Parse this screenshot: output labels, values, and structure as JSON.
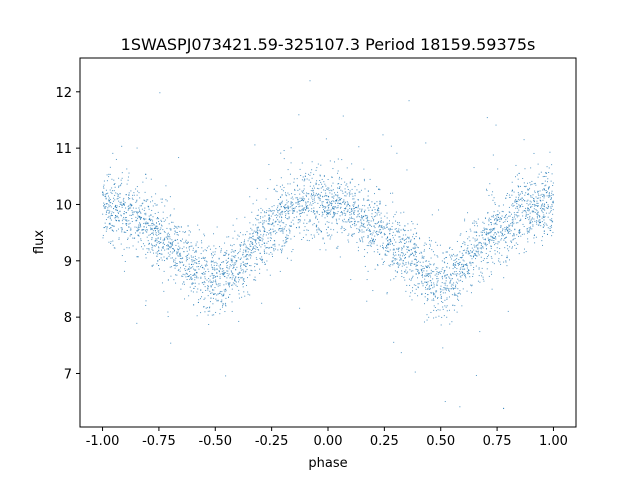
{
  "chart_data": {
    "type": "scatter",
    "title": "1SWASPJ073421.59-325107.3 Period 18159.59375s",
    "xlabel": "phase",
    "ylabel": "flux",
    "xlim": [
      -1.1,
      1.1
    ],
    "ylim": [
      6.05,
      12.6
    ],
    "xticks": [
      "-1.00",
      "-0.75",
      "-0.50",
      "-0.25",
      "0.00",
      "0.25",
      "0.50",
      "0.75",
      "1.00"
    ],
    "yticks": [
      "7",
      "8",
      "9",
      "10",
      "11",
      "12"
    ],
    "grid": false,
    "marker_color": "#1f77b4",
    "series": [
      {
        "phase_profile": {
          "x": [
            -1.0,
            -0.9,
            -0.8,
            -0.7,
            -0.6,
            -0.55,
            -0.5,
            -0.45,
            -0.4,
            -0.3,
            -0.2,
            -0.1,
            0.0,
            0.1,
            0.2,
            0.3,
            0.4,
            0.45,
            0.5,
            0.55,
            0.6,
            0.7,
            0.8,
            0.9,
            1.0
          ],
          "y": [
            10.0,
            9.85,
            9.6,
            9.3,
            8.95,
            8.75,
            8.65,
            8.7,
            8.9,
            9.4,
            9.8,
            10.0,
            10.05,
            9.9,
            9.6,
            9.3,
            8.9,
            8.7,
            8.6,
            8.7,
            8.95,
            9.35,
            9.7,
            9.9,
            10.0
          ]
        },
        "scatter_sigma": 0.3,
        "n_points": 4200
      }
    ]
  }
}
